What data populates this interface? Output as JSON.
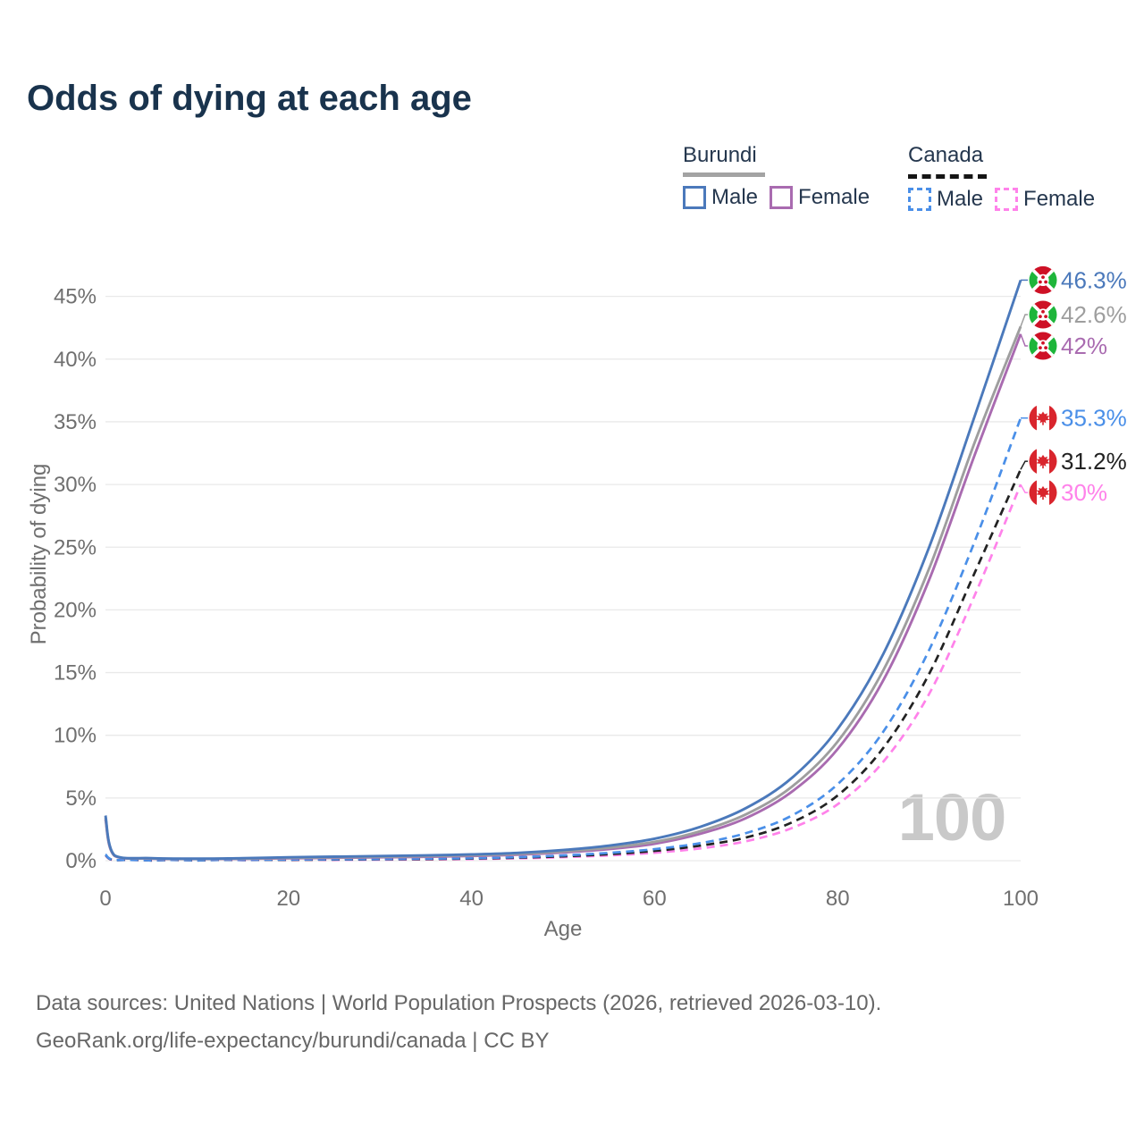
{
  "title": "Odds of dying at each age",
  "legend": {
    "burundi": {
      "label": "Burundi",
      "male": "Male",
      "female": "Female"
    },
    "canada": {
      "label": "Canada",
      "male": "Male",
      "female": "Female"
    }
  },
  "axes": {
    "x": {
      "label": "Age",
      "ticks": [
        "0",
        "20",
        "40",
        "60",
        "80",
        "100"
      ]
    },
    "y": {
      "label": "Probability of dying",
      "ticks": [
        "0%",
        "5%",
        "10%",
        "15%",
        "20%",
        "25%",
        "30%",
        "35%",
        "40%",
        "45%"
      ]
    }
  },
  "hover_age_indicator": "100",
  "footer": {
    "line1": "Data sources: United Nations | World Population Prospects (2026, retrieved 2026-03-10).",
    "line2": "GeoRank.org/life-expectancy/burundi/canada | CC BY"
  },
  "colors": {
    "title": "#19334d",
    "axis_text": "#6f6f6f",
    "gridline": "#e9e9e9",
    "watermark": "#c9c9c9",
    "burundi_male": "#4b79bb",
    "burundi_combined": "#9e9e9e",
    "burundi_female": "#a96bb0",
    "canada_male": "#4a8fe8",
    "canada_combined": "#222222",
    "canada_female": "#ff82ea",
    "burundi_flag_red": "#ce1126",
    "burundi_flag_green": "#1eb53a",
    "canada_flag_red": "#d9252d"
  },
  "chart_data": {
    "type": "line",
    "title": "Odds of dying at each age",
    "xlabel": "Age",
    "ylabel": "Probability of dying",
    "xlim": [
      0,
      100
    ],
    "ylim_pct": [
      0,
      47
    ],
    "grid": "horizontal",
    "legend_position": "top-right",
    "ages": [
      0,
      1,
      5,
      10,
      15,
      20,
      25,
      30,
      35,
      40,
      45,
      50,
      55,
      60,
      65,
      70,
      75,
      80,
      85,
      90,
      95,
      100
    ],
    "series": [
      {
        "id": "burundi-male",
        "country": "Burundi",
        "sex": "Male",
        "style": "solid",
        "color": "#4b79bb",
        "end_label": "46.3%",
        "flag": "burundi",
        "values_pct": [
          3.6,
          0.42,
          0.2,
          0.16,
          0.2,
          0.27,
          0.32,
          0.37,
          0.42,
          0.5,
          0.62,
          0.85,
          1.2,
          1.75,
          2.7,
          4.2,
          6.6,
          10.5,
          16.5,
          25,
          35.5,
          46.3
        ]
      },
      {
        "id": "burundi-combined",
        "country": "Burundi",
        "sex": "Combined",
        "style": "solid",
        "color": "#9e9e9e",
        "end_label": "42.6%",
        "flag": "burundi",
        "values_pct": [
          3.45,
          0.4,
          0.18,
          0.15,
          0.17,
          0.23,
          0.27,
          0.31,
          0.36,
          0.43,
          0.54,
          0.74,
          1.03,
          1.5,
          2.35,
          3.7,
          5.9,
          9.5,
          15.2,
          23.3,
          33.4,
          42.6
        ]
      },
      {
        "id": "burundi-female",
        "country": "Burundi",
        "sex": "Female",
        "style": "solid",
        "color": "#a96bb0",
        "end_label": "42%",
        "flag": "burundi",
        "values_pct": [
          3.3,
          0.38,
          0.17,
          0.14,
          0.15,
          0.19,
          0.23,
          0.27,
          0.31,
          0.38,
          0.48,
          0.66,
          0.92,
          1.35,
          2.15,
          3.4,
          5.5,
          8.9,
          14.4,
          22.4,
          32.4,
          42
        ]
      },
      {
        "id": "canada-male",
        "country": "Canada",
        "sex": "Male",
        "style": "dashed",
        "color": "#4a8fe8",
        "end_label": "35.3%",
        "flag": "canada",
        "values_pct": [
          0.5,
          0.04,
          0.02,
          0.02,
          0.06,
          0.09,
          0.11,
          0.13,
          0.16,
          0.2,
          0.28,
          0.42,
          0.62,
          0.92,
          1.4,
          2.2,
          3.6,
          6.1,
          10.3,
          16.8,
          25.5,
          35.3
        ]
      },
      {
        "id": "canada-combined",
        "country": "Canada",
        "sex": "Combined",
        "style": "dashed",
        "color": "#222222",
        "end_label": "31.2%",
        "flag": "canada",
        "values_pct": [
          0.46,
          0.035,
          0.018,
          0.018,
          0.05,
          0.07,
          0.09,
          0.11,
          0.13,
          0.17,
          0.24,
          0.35,
          0.52,
          0.78,
          1.2,
          1.85,
          3.05,
          5.2,
          9,
          14.9,
          23,
          31.2
        ]
      },
      {
        "id": "canada-female",
        "country": "Canada",
        "sex": "Female",
        "style": "dashed",
        "color": "#ff82ea",
        "end_label": "30%",
        "flag": "canada",
        "values_pct": [
          0.42,
          0.03,
          0.015,
          0.015,
          0.04,
          0.05,
          0.06,
          0.08,
          0.1,
          0.13,
          0.19,
          0.28,
          0.42,
          0.63,
          0.98,
          1.55,
          2.6,
          4.5,
          7.9,
          13.3,
          21.2,
          30
        ]
      }
    ]
  }
}
